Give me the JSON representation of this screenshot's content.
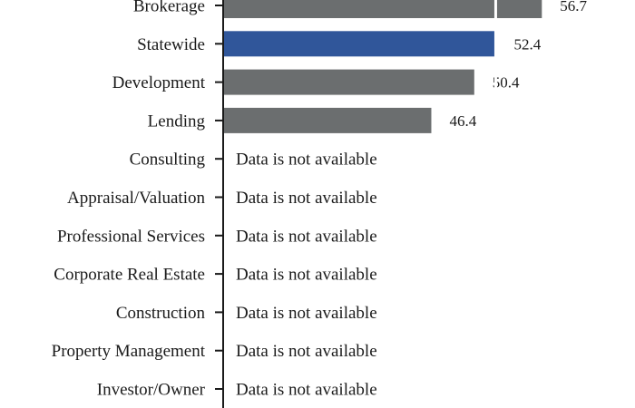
{
  "chart_data": {
    "type": "bar",
    "orientation": "horizontal",
    "categories": [
      "Brokerage",
      "Statewide",
      "Development",
      "Lending",
      "Consulting",
      "Appraisal/Valuation",
      "Professional Services",
      "Corporate Real Estate",
      "Construction",
      "Property Management",
      "Investor/Owner"
    ],
    "values": [
      56.7,
      52.4,
      50.4,
      46.4,
      null,
      null,
      null,
      null,
      null,
      null,
      null
    ],
    "value_labels": [
      "56.7",
      "52.4",
      "50.4",
      "46.4",
      null,
      null,
      null,
      null,
      null,
      null,
      null
    ],
    "highlight_category": "Statewide",
    "colors": {
      "default": "#6b6e6f",
      "highlight": "#30569a",
      "reference_line": "#ffffff",
      "axis": "#1a1a1a"
    },
    "reference_value": 52.4,
    "missing_text": "Data is not available",
    "xlim": [
      27,
      62
    ],
    "grid": false,
    "legend": false
  }
}
